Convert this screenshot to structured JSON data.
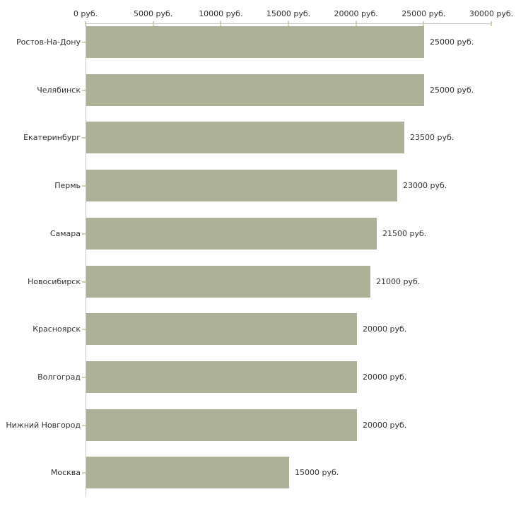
{
  "chart_data": {
    "type": "bar",
    "orientation": "horizontal",
    "title": "",
    "xlabel": "",
    "ylabel": "",
    "categories": [
      "Ростов-На-Дону",
      "Челябинск",
      "Екатеринбург",
      "Пермь",
      "Самара",
      "Новосибирск",
      "Красноярск",
      "Волгоград",
      "Нижний Новгород",
      "Москва"
    ],
    "values": [
      25000,
      25000,
      23500,
      23000,
      21500,
      21000,
      20000,
      20000,
      20000,
      15000
    ],
    "value_labels": [
      "25000 руб.",
      "25000 руб.",
      "23500 руб.",
      "23000 руб.",
      "21500 руб.",
      "21000 руб.",
      "20000 руб.",
      "20000 руб.",
      "20000 руб.",
      "15000 руб."
    ],
    "unit": "руб.",
    "xlim": [
      0,
      30000
    ],
    "x_ticks": [
      0,
      5000,
      10000,
      15000,
      20000,
      25000,
      30000
    ],
    "x_tick_labels": [
      "0 руб.",
      "5000 руб.",
      "10000 руб.",
      "15000 руб.",
      "20000 руб.",
      "25000 руб.",
      "30000 руб."
    ],
    "grid": false,
    "legend_visible": false,
    "colors": {
      "bar": "#acb198",
      "axis_line": "#c6c6c6",
      "tick_mark": "#d3d0b2",
      "text": "#333333",
      "background": "#ffffff"
    }
  }
}
